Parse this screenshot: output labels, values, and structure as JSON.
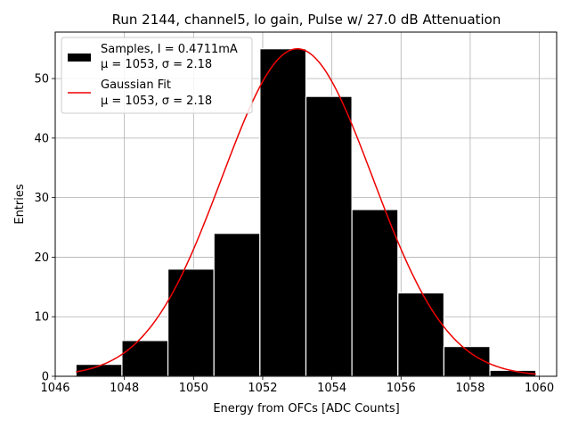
{
  "chart_data": {
    "type": "bar",
    "title": "Run 2144, channel5, lo gain, Pulse w/ 27.0 dB Attenuation",
    "xlabel": "Energy from OFCs [ADC Counts]",
    "ylabel": "Entries",
    "xlim": [
      1046.0,
      1060.5
    ],
    "ylim": [
      0,
      57.8
    ],
    "xticks": [
      1046,
      1048,
      1050,
      1052,
      1054,
      1056,
      1058,
      1060
    ],
    "yticks": [
      0,
      10,
      20,
      30,
      40,
      50
    ],
    "grid": true,
    "legend_position": "upper-left",
    "bar_color": "#000000",
    "fit_color": "#ee0000",
    "histogram": {
      "name": "Samples, I = 0.4711mA",
      "name_line2": "μ = 1053, σ = 2.18",
      "bins": [
        {
          "x0": 1046.6,
          "x1": 1047.93,
          "count": 2
        },
        {
          "x0": 1047.93,
          "x1": 1049.26,
          "count": 6
        },
        {
          "x0": 1049.26,
          "x1": 1050.59,
          "count": 18
        },
        {
          "x0": 1050.59,
          "x1": 1051.92,
          "count": 24
        },
        {
          "x0": 1051.92,
          "x1": 1053.25,
          "count": 55
        },
        {
          "x0": 1053.25,
          "x1": 1054.58,
          "count": 47
        },
        {
          "x0": 1054.58,
          "x1": 1055.91,
          "count": 28
        },
        {
          "x0": 1055.91,
          "x1": 1057.24,
          "count": 14
        },
        {
          "x0": 1057.24,
          "x1": 1058.57,
          "count": 5
        },
        {
          "x0": 1058.57,
          "x1": 1059.9,
          "count": 1
        }
      ]
    },
    "fit": {
      "name": "Gaussian Fit",
      "name_line2": "μ = 1053, σ = 2.18",
      "mu": 1053.0,
      "sigma": 2.18,
      "amplitude": 55.0,
      "x_range": [
        1046.6,
        1059.9
      ]
    }
  }
}
